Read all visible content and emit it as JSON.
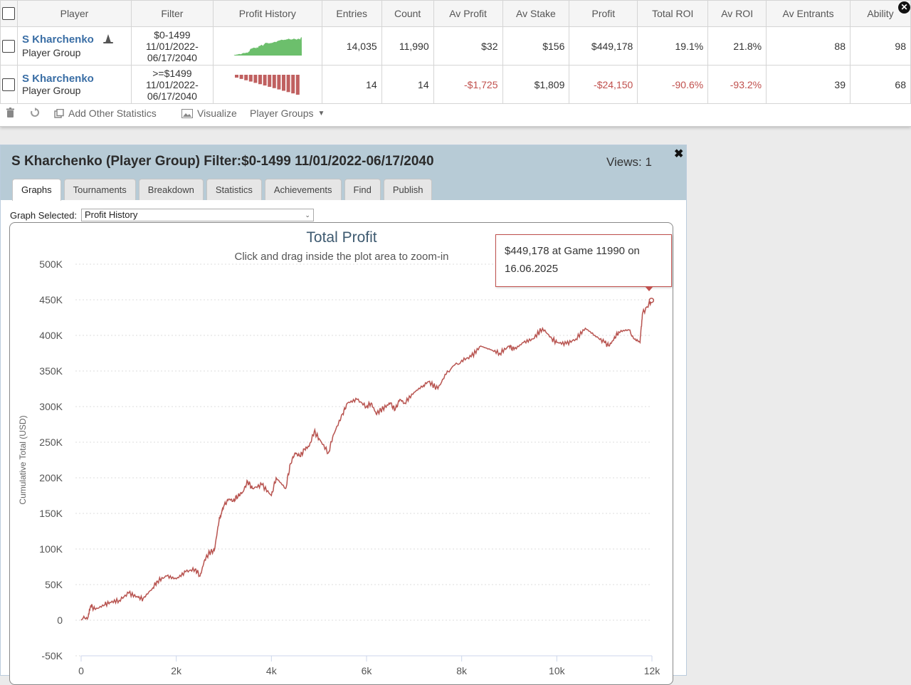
{
  "table": {
    "headers": [
      "Player",
      "Filter",
      "Profit History",
      "Entries",
      "Count",
      "Av Profit",
      "Av Stake",
      "Profit",
      "Total ROI",
      "Av ROI",
      "Av Entrants",
      "Ability"
    ],
    "rows": [
      {
        "player": "S Kharchenko",
        "group": "Player Group",
        "filter": "$0-1499 11/01/2022-06/17/2040",
        "entries": "14,035",
        "count": "11,990",
        "av_profit": "$32",
        "av_stake": "$156",
        "profit": "$449,178",
        "total_roi": "19.1%",
        "av_roi": "21.8%",
        "av_entrants": "88",
        "ability": "98",
        "spark_color": "#6cbf6c"
      },
      {
        "player": "S Kharchenko",
        "group": "Player Group",
        "filter": ">=$1499 11/01/2022-06/17/2040",
        "entries": "14",
        "count": "14",
        "av_profit": "-$1,725",
        "av_stake": "$1,809",
        "profit": "-$24,150",
        "total_roi": "-90.6%",
        "av_roi": "-93.2%",
        "av_entrants": "39",
        "ability": "68",
        "spark_color": "#c06060"
      }
    ]
  },
  "toolbar": {
    "add_stats": "Add Other Statistics",
    "visualize": "Visualize",
    "player_groups": "Player Groups"
  },
  "detail": {
    "title": "S Kharchenko (Player Group) Filter:$0-1499 11/01/2022-06/17/2040",
    "views": "Views: 1",
    "tabs": [
      "Graphs",
      "Tournaments",
      "Breakdown",
      "Statistics",
      "Achievements",
      "Find",
      "Publish"
    ],
    "graph_selected_label": "Graph Selected:",
    "graph_selected_value": "Profit History"
  },
  "tooltip": {
    "text": "$449,178 at Game 11990 on 16.06.2025"
  },
  "chart_data": {
    "type": "line",
    "title": "Total Profit",
    "subtitle": "Click and drag inside the plot area to zoom-in",
    "xlabel": "",
    "ylabel": "Cumulative Total (USD)",
    "xlim": [
      0,
      12000
    ],
    "ylim": [
      -50000,
      500000
    ],
    "x_ticks": [
      "0",
      "2k",
      "4k",
      "6k",
      "8k",
      "10k",
      "12k"
    ],
    "y_ticks": [
      "-50K",
      "0",
      "50K",
      "100K",
      "150K",
      "200K",
      "250K",
      "300K",
      "350K",
      "400K",
      "450K",
      "500K"
    ],
    "grid": true,
    "line_color": "#b85450",
    "series": [
      {
        "x": [
          0,
          150,
          200,
          300,
          500,
          600,
          800,
          1000,
          1200,
          1300,
          1500,
          1600,
          1800,
          2000,
          2200,
          2400,
          2500,
          2600,
          2700,
          2800,
          2900,
          2950,
          3000,
          3100,
          3200,
          3300,
          3400,
          3500,
          3600,
          3800,
          4000,
          4100,
          4300,
          4400,
          4500,
          4600,
          4700,
          4800,
          4900,
          5000,
          5200,
          5300,
          5500,
          5600,
          5800,
          6000,
          6100,
          6200,
          6300,
          6400,
          6500,
          6600,
          6700,
          6800,
          7000,
          7200,
          7300,
          7500,
          7700,
          8000,
          8200,
          8400,
          8600,
          8800,
          9000,
          9100,
          9300,
          9500,
          9700,
          9900,
          10000,
          10200,
          10400,
          10600,
          10800,
          11000,
          11100,
          11200,
          11300,
          11500,
          11650,
          11750,
          11800,
          11990
        ],
        "y": [
          0,
          5000,
          20000,
          15000,
          22000,
          25000,
          28000,
          38000,
          32000,
          30000,
          45000,
          55000,
          62000,
          58000,
          68000,
          72000,
          62000,
          85000,
          95000,
          98000,
          140000,
          150000,
          160000,
          170000,
          168000,
          175000,
          180000,
          195000,
          185000,
          190000,
          175000,
          200000,
          185000,
          220000,
          235000,
          230000,
          240000,
          245000,
          265000,
          255000,
          235000,
          260000,
          290000,
          305000,
          310000,
          300000,
          305000,
          290000,
          295000,
          300000,
          305000,
          295000,
          310000,
          305000,
          320000,
          330000,
          335000,
          325000,
          350000,
          365000,
          370000,
          385000,
          380000,
          375000,
          385000,
          380000,
          390000,
          395000,
          410000,
          395000,
          390000,
          388000,
          395000,
          410000,
          400000,
          390000,
          385000,
          395000,
          405000,
          408000,
          395000,
          390000,
          430000,
          449178
        ]
      }
    ]
  }
}
